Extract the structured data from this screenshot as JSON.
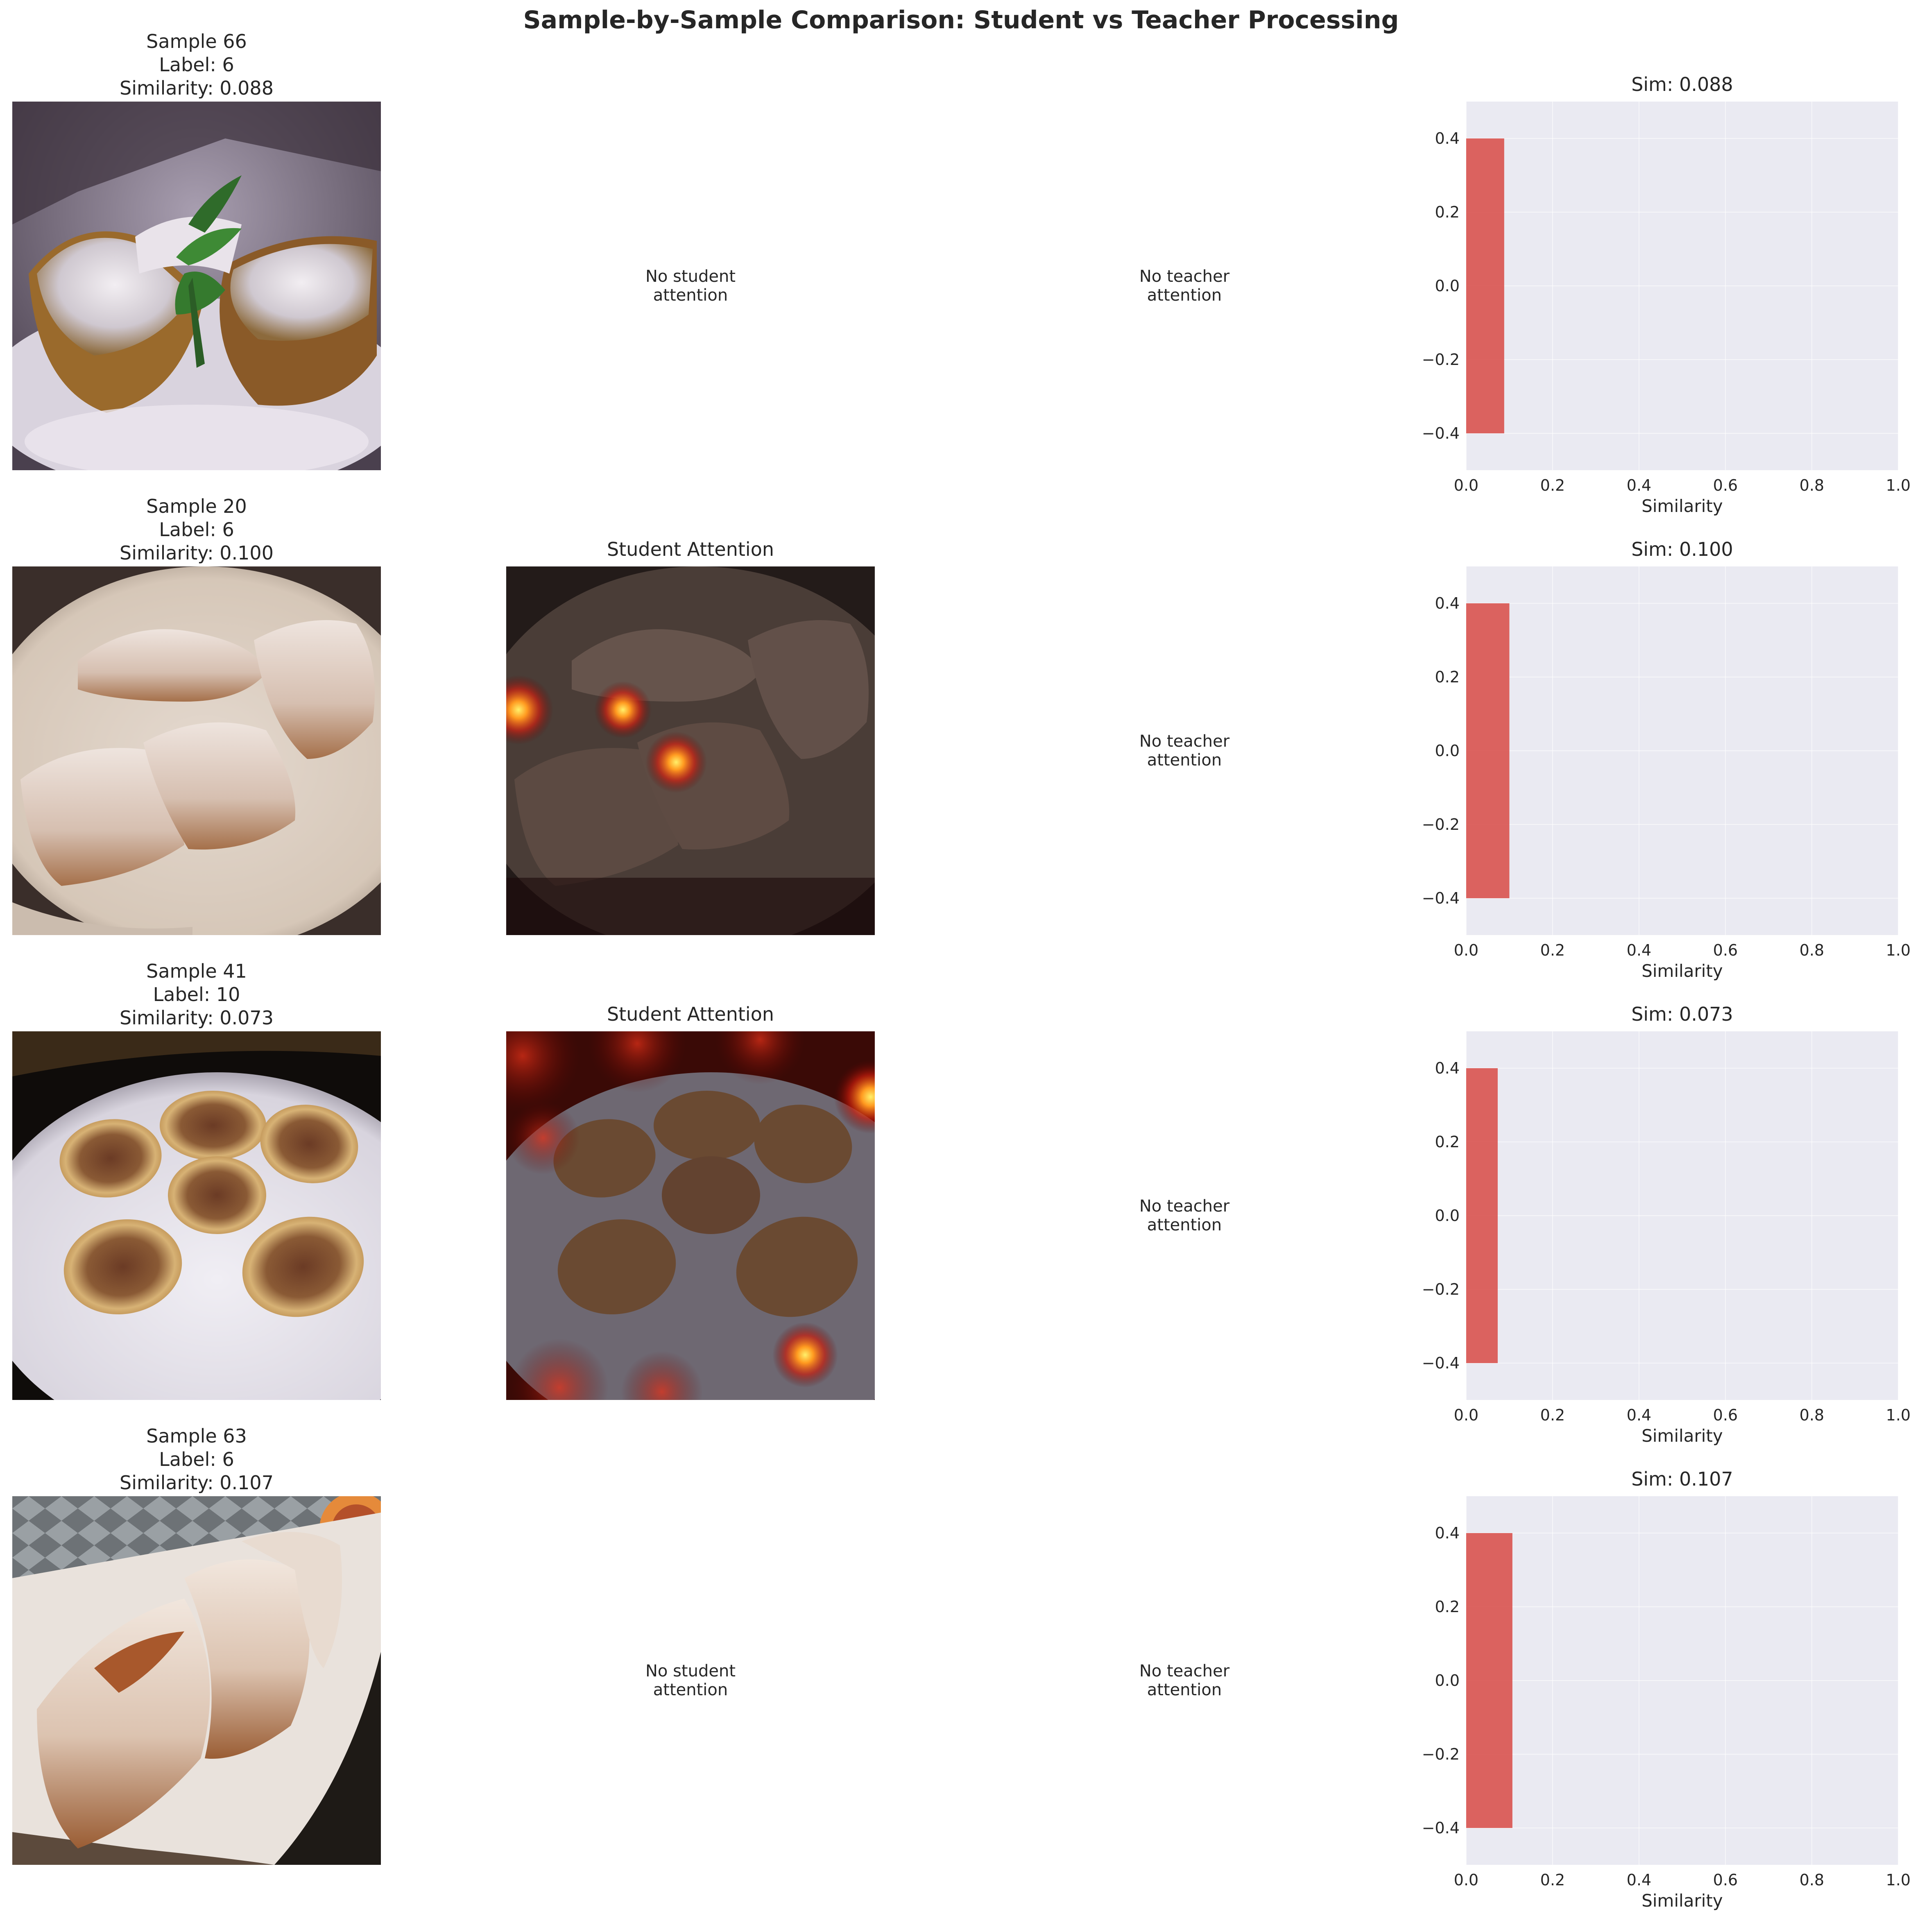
{
  "figure": {
    "suptitle": "Sample-by-Sample Comparison: Student vs Teacher Processing"
  },
  "panels": {
    "student_attention_title": "Student Attention",
    "no_student_line1": "No student",
    "no_student_line2": "attention",
    "no_teacher_line1": "No teacher",
    "no_teacher_line2": "attention"
  },
  "rows": [
    {
      "sample": "Sample 66",
      "label": "Label: 6",
      "similarity": "Similarity: 0.088",
      "sim_title": "Sim: 0.088",
      "has_student_attention": false
    },
    {
      "sample": "Sample 20",
      "label": "Label: 6",
      "similarity": "Similarity: 0.100",
      "sim_title": "Sim: 0.100",
      "has_student_attention": true
    },
    {
      "sample": "Sample 41",
      "label": "Label: 10",
      "similarity": "Similarity: 0.073",
      "sim_title": "Sim: 0.073",
      "has_student_attention": true
    },
    {
      "sample": "Sample 63",
      "label": "Label: 6",
      "similarity": "Similarity: 0.107",
      "sim_title": "Sim: 0.107",
      "has_student_attention": false
    }
  ],
  "colors": {
    "bar": "#d9534f",
    "axes_bg": "#eaeaf2",
    "grid": "#ffffff"
  },
  "chart_data": [
    {
      "type": "bar",
      "orientation": "horizontal",
      "title": "Sim: 0.088",
      "xlabel": "Similarity",
      "categories": [
        0
      ],
      "values": [
        0.088
      ],
      "xlim": [
        0,
        1
      ],
      "ylim": [
        -0.5,
        0.5
      ],
      "xticks": [
        "0.0",
        "0.2",
        "0.4",
        "0.6",
        "0.8",
        "1.0"
      ],
      "yticks": [
        "0.4",
        "0.2",
        "0.0",
        "−0.2",
        "−0.4"
      ],
      "grid": true
    },
    {
      "type": "bar",
      "orientation": "horizontal",
      "title": "Sim: 0.100",
      "xlabel": "Similarity",
      "categories": [
        0
      ],
      "values": [
        0.1
      ],
      "xlim": [
        0,
        1
      ],
      "ylim": [
        -0.5,
        0.5
      ],
      "xticks": [
        "0.0",
        "0.2",
        "0.4",
        "0.6",
        "0.8",
        "1.0"
      ],
      "yticks": [
        "0.4",
        "0.2",
        "0.0",
        "−0.2",
        "−0.4"
      ],
      "grid": true
    },
    {
      "type": "bar",
      "orientation": "horizontal",
      "title": "Sim: 0.073",
      "xlabel": "Similarity",
      "categories": [
        0
      ],
      "values": [
        0.073
      ],
      "xlim": [
        0,
        1
      ],
      "ylim": [
        -0.5,
        0.5
      ],
      "xticks": [
        "0.0",
        "0.2",
        "0.4",
        "0.6",
        "0.8",
        "1.0"
      ],
      "yticks": [
        "0.4",
        "0.2",
        "0.0",
        "−0.2",
        "−0.4"
      ],
      "grid": true
    },
    {
      "type": "bar",
      "orientation": "horizontal",
      "title": "Sim: 0.107",
      "xlabel": "Similarity",
      "categories": [
        0
      ],
      "values": [
        0.107
      ],
      "xlim": [
        0,
        1
      ],
      "ylim": [
        -0.5,
        0.5
      ],
      "xticks": [
        "0.0",
        "0.2",
        "0.4",
        "0.6",
        "0.8",
        "1.0"
      ],
      "yticks": [
        "0.4",
        "0.2",
        "0.0",
        "−0.2",
        "−0.4"
      ],
      "grid": true
    }
  ]
}
